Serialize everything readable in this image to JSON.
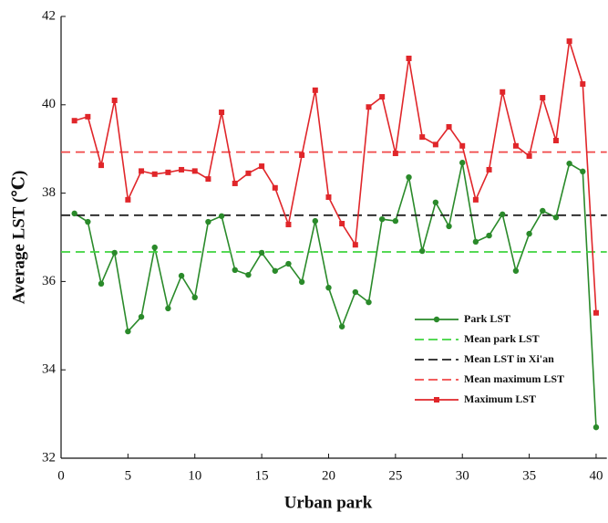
{
  "chart_data": {
    "type": "line",
    "x_label": "Urban park",
    "y_label": "Average LST (℃)",
    "x": [
      1,
      2,
      3,
      4,
      5,
      6,
      7,
      8,
      9,
      10,
      11,
      12,
      13,
      14,
      15,
      16,
      17,
      18,
      19,
      20,
      21,
      22,
      23,
      24,
      25,
      26,
      27,
      28,
      29,
      30,
      31,
      32,
      33,
      34,
      35,
      36,
      37,
      38,
      39,
      40
    ],
    "series": [
      {
        "name": "Park LST",
        "color": "#2a8a2a",
        "marker": "circle",
        "values": [
          37.54,
          37.35,
          35.95,
          36.65,
          34.87,
          35.2,
          36.77,
          35.39,
          36.13,
          35.64,
          37.35,
          37.48,
          36.26,
          36.15,
          36.65,
          36.24,
          36.4,
          35.99,
          37.37,
          35.86,
          34.98,
          35.76,
          35.53,
          37.41,
          37.37,
          38.36,
          36.69,
          37.79,
          37.25,
          38.69,
          36.9,
          37.04,
          37.52,
          36.24,
          37.08,
          37.6,
          37.45,
          38.67,
          38.49,
          32.7
        ]
      },
      {
        "name": "Mean park LST",
        "color": "#3fd43f",
        "value": 36.67,
        "style": "dashed"
      },
      {
        "name": "Mean LST in Xi'an",
        "color": "#222222",
        "value": 37.5,
        "style": "dashed"
      },
      {
        "name": "Mean maximum LST",
        "color": "#f04848",
        "value": 38.93,
        "style": "dashed"
      },
      {
        "name": "Maximum LST",
        "color": "#e0262a",
        "marker": "square",
        "values": [
          39.64,
          39.73,
          38.63,
          40.1,
          37.85,
          38.5,
          38.43,
          38.47,
          38.53,
          38.5,
          38.32,
          39.83,
          38.22,
          38.45,
          38.61,
          38.12,
          37.29,
          38.86,
          40.33,
          37.91,
          37.31,
          36.83,
          39.95,
          40.18,
          38.9,
          41.05,
          39.27,
          39.1,
          39.5,
          39.07,
          37.85,
          38.53,
          40.29,
          39.07,
          38.84,
          40.16,
          39.19,
          41.44,
          40.47,
          35.29
        ]
      }
    ],
    "xlim": [
      0,
      40.8
    ],
    "ylim": [
      32,
      42
    ],
    "xticks": [
      0,
      5,
      10,
      15,
      20,
      25,
      30,
      35,
      40
    ],
    "yticks": [
      32,
      34,
      36,
      38,
      40,
      42
    ],
    "legend": "lower right"
  }
}
